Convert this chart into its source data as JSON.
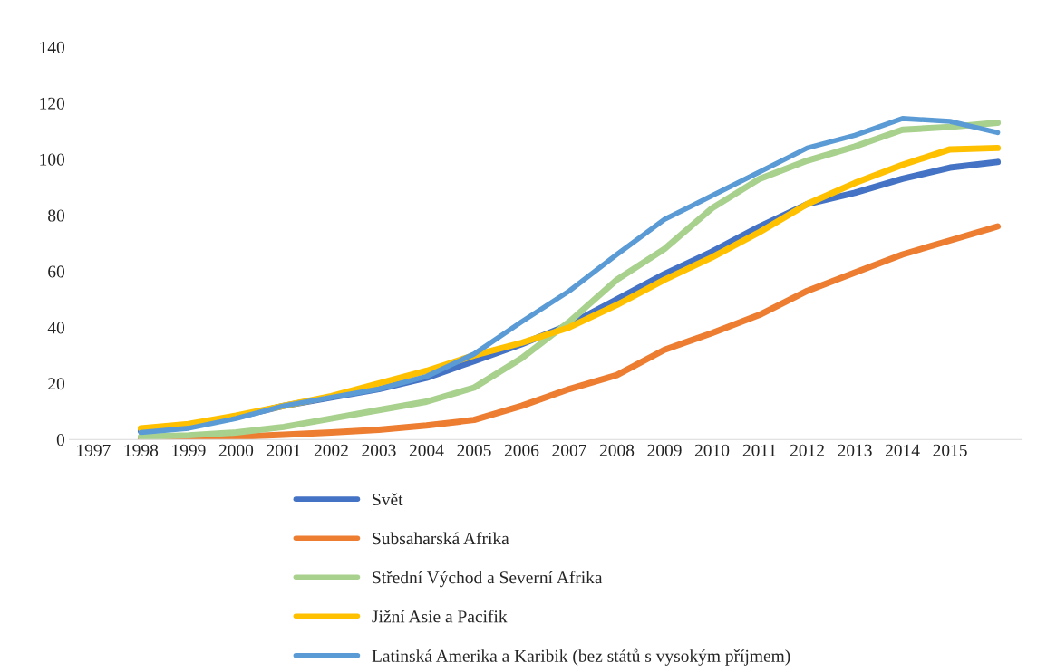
{
  "chart_data": {
    "type": "line",
    "categories": [
      "1997",
      "1998",
      "1999",
      "2000",
      "2001",
      "2002",
      "2003",
      "2004",
      "2005",
      "2006",
      "2007",
      "2008",
      "2009",
      "2010",
      "2011",
      "2012",
      "2013",
      "2014",
      "2015",
      null
    ],
    "series": [
      {
        "name": "Svět",
        "color": "#4472c4",
        "values": [
          null,
          3,
          5,
          8,
          12,
          15,
          18,
          22,
          28,
          34,
          41,
          50,
          59,
          67,
          76,
          84,
          88,
          93,
          97,
          99
        ]
      },
      {
        "name": "Subsaharská Afrika",
        "color": "#ed7d31",
        "values": [
          null,
          0.3,
          0.5,
          1,
          1.7,
          2.5,
          3.5,
          5,
          7,
          12,
          18,
          23,
          32,
          38,
          44.5,
          53,
          59.5,
          66,
          71,
          76
        ]
      },
      {
        "name": "Střední Východ a Severní Afrika",
        "color": "#a9d18e",
        "values": [
          null,
          1,
          1.5,
          2.5,
          4.5,
          7.5,
          10.5,
          13.5,
          18.5,
          29,
          42,
          57,
          68,
          82.5,
          93,
          99.5,
          104.5,
          110.5,
          111.5,
          113
        ]
      },
      {
        "name": "Jižní Asie a Pacifik",
        "color": "#ffc000",
        "values": [
          null,
          4,
          5.5,
          8.5,
          12,
          15.5,
          20,
          24.5,
          30,
          34.5,
          40,
          48,
          57,
          65,
          74,
          84,
          91.5,
          98,
          103.5,
          104
        ]
      },
      {
        "name": "Latinská Amerika a Karibik (bez států s vysokým příjmem)",
        "color": "#5b9bd5",
        "values": [
          null,
          2.5,
          4,
          7.5,
          12,
          15,
          18,
          22.5,
          30.5,
          42,
          53,
          66,
          78.5,
          87,
          95.5,
          104,
          108.5,
          114.5,
          113.5,
          109.5
        ]
      }
    ],
    "ylim": [
      0,
      140
    ],
    "yticks": [
      0,
      20,
      40,
      60,
      80,
      100,
      120,
      140
    ],
    "grid": false,
    "legend": "bottom",
    "marker": "none",
    "line_style": "solid"
  }
}
